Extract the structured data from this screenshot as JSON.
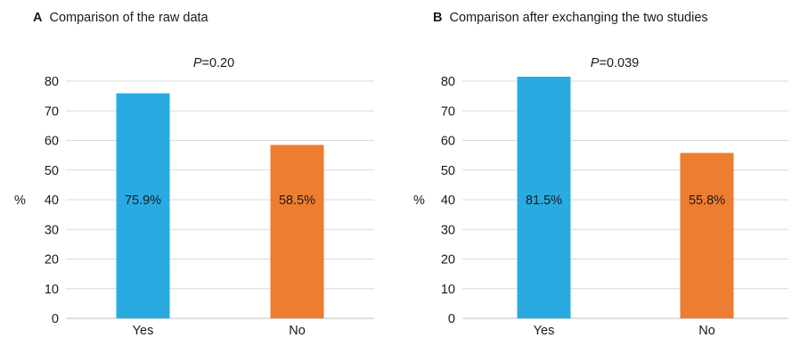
{
  "chart_data": [
    {
      "panel": "A",
      "title": "Comparison of the raw data",
      "type": "bar",
      "p_prefix": "P",
      "p_value": "=0.20",
      "ylabel": "%",
      "categories": [
        "Yes",
        "No"
      ],
      "values": [
        75.9,
        58.5
      ],
      "data_labels": [
        "75.9%",
        "58.5%"
      ],
      "colors": [
        "#29ABE2",
        "#ED7D31"
      ],
      "ylim": [
        0,
        80
      ],
      "yticks": [
        0,
        10,
        20,
        30,
        40,
        50,
        60,
        70,
        80
      ],
      "grid": true
    },
    {
      "panel": "B",
      "title": "Comparison after exchanging the two studies",
      "type": "bar",
      "p_prefix": "P",
      "p_value": "=0.039",
      "ylabel": "%",
      "categories": [
        "Yes",
        "No"
      ],
      "values": [
        81.5,
        55.8
      ],
      "data_labels": [
        "81.5%",
        "55.8%"
      ],
      "colors": [
        "#29ABE2",
        "#ED7D31"
      ],
      "ylim": [
        0,
        80
      ],
      "yticks": [
        0,
        10,
        20,
        30,
        40,
        50,
        60,
        70,
        80
      ],
      "grid": true
    }
  ]
}
